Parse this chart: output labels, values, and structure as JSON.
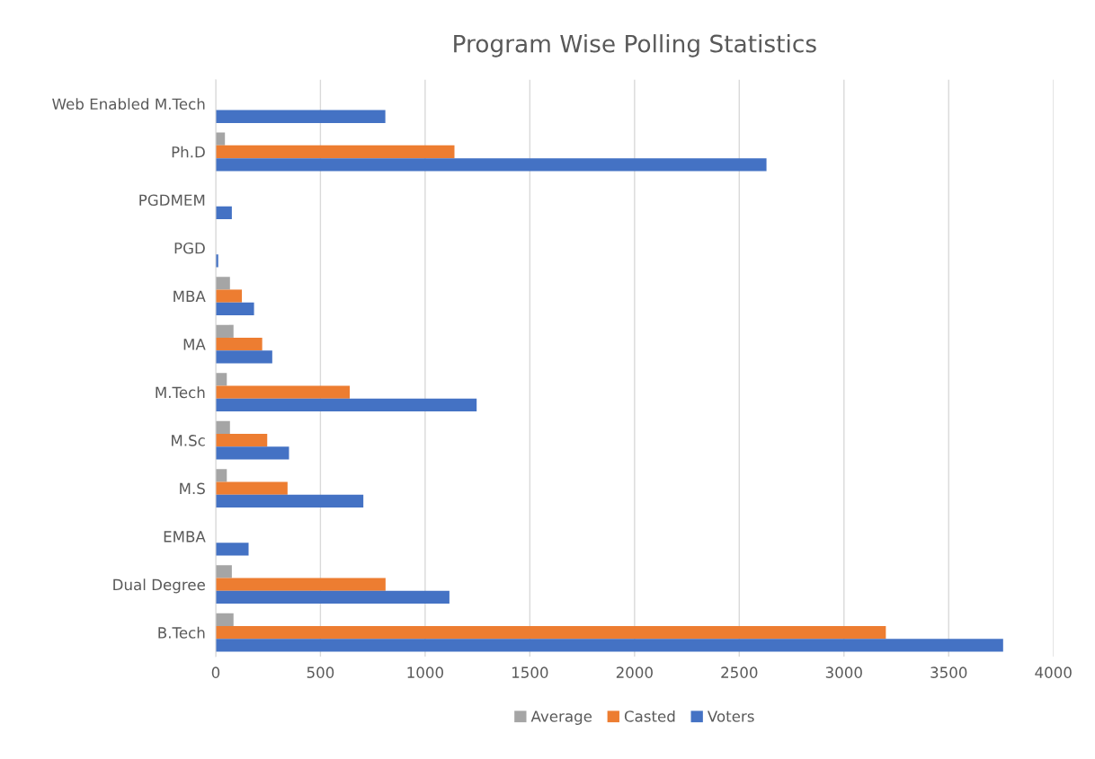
{
  "chart_data": {
    "type": "bar",
    "orientation": "horizontal",
    "title": "Program Wise Polling Statistics",
    "categories": [
      "Web Enabled M.Tech",
      "Ph.D",
      "PGDMEM",
      "PGD",
      "MBA",
      "MA",
      "M.Tech",
      "M.Sc",
      "M.S",
      "EMBA",
      "Dual Degree",
      "B.Tech"
    ],
    "series": [
      {
        "name": "Average",
        "color": "#a5a5a5",
        "values": [
          null,
          44,
          null,
          null,
          68,
          85,
          53,
          68,
          53,
          null,
          77,
          85
        ]
      },
      {
        "name": "Casted",
        "color": "#ed7d31",
        "values": [
          null,
          1140,
          null,
          null,
          125,
          222,
          640,
          246,
          343,
          null,
          811,
          3200
        ]
      },
      {
        "name": "Voters",
        "color": "#4472c4",
        "values": [
          810,
          2630,
          77,
          12,
          183,
          270,
          1246,
          350,
          705,
          157,
          1116,
          3760
        ]
      }
    ],
    "xlim": [
      0,
      4000
    ],
    "xticks": [
      0,
      500,
      1000,
      1500,
      2000,
      2500,
      3000,
      3500,
      4000
    ],
    "grid": "x",
    "legend": "bottom"
  }
}
